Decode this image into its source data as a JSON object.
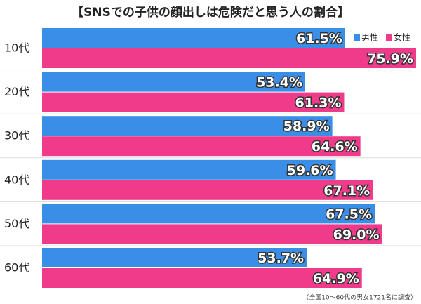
{
  "chart_data": {
    "type": "bar",
    "orientation": "horizontal",
    "title": "【SNSでの子供の顔出しは危険だと思う人の割合】",
    "note": "（全国10～60代の男女1721名に調査）",
    "categories": [
      "10代",
      "20代",
      "30代",
      "40代",
      "50代",
      "60代"
    ],
    "series": [
      {
        "name": "男性",
        "color": "#3a8ee6",
        "values": [
          61.5,
          53.4,
          58.9,
          59.6,
          67.5,
          53.7
        ],
        "value_labels": [
          "61.5%",
          "53.4%",
          "58.9%",
          "59.6%",
          "67.5%",
          "53.7%"
        ]
      },
      {
        "name": "女性",
        "color": "#f03b8b",
        "values": [
          75.9,
          61.3,
          64.6,
          67.1,
          69.0,
          64.9
        ],
        "value_labels": [
          "75.9%",
          "61.3%",
          "64.6%",
          "67.1%",
          "69.0%",
          "64.9%"
        ]
      }
    ]
  }
}
